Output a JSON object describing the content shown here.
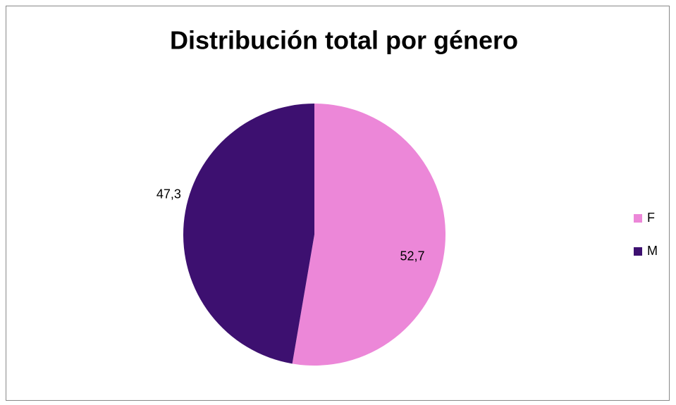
{
  "chart_data": {
    "type": "pie",
    "title": "Distribución total por género",
    "categories": [
      "F",
      "M"
    ],
    "values": [
      52.7,
      47.3
    ],
    "value_labels": [
      "52,7",
      "47,3"
    ],
    "colors": [
      "#ec87d8",
      "#3d1070"
    ],
    "legend": "right"
  }
}
